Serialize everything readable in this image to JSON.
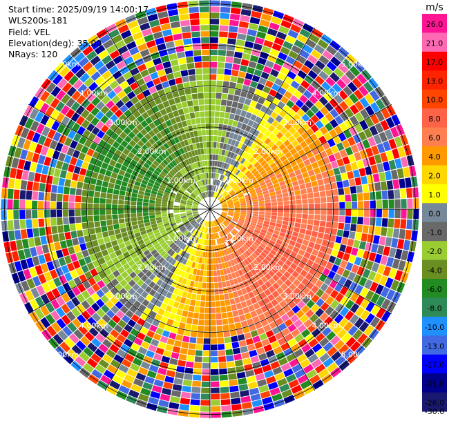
{
  "header": {
    "start_time": "Start time: 2025/09/19 14:00:17",
    "instrument": "WLS200s-181",
    "field": "Field: VEL",
    "elevation": "Elevation(deg): 35.00",
    "nrays": "NRays: 120"
  },
  "chart_data": {
    "type": "heatmap",
    "projection": "polar-ppi",
    "field": "VEL",
    "n_rays": 120,
    "range_rings": [
      {
        "label": "1.00km",
        "value": 1.0
      },
      {
        "label": "2.00km",
        "value": 2.0
      },
      {
        "label": "3.00km",
        "value": 3.0
      },
      {
        "label": "4.00km",
        "value": 4.0
      },
      {
        "label": "5.00km",
        "value": 5.0
      }
    ],
    "max_range_km": 5.1,
    "colorbar": {
      "unit": "m/s",
      "ticks": [
        "26.0",
        "21.0",
        "17.0",
        "13.0",
        "10.0",
        "8.0",
        "6.0",
        "4.0",
        "2.0",
        "1.0",
        "0.0",
        "-1.0",
        "-2.0",
        "-4.0",
        "-6.0",
        "-8.0",
        "-10.0",
        "-13.0",
        "-17.0",
        "-21.0",
        "-26.0",
        "-30.0"
      ],
      "colors": [
        "#ff1493",
        "#ff69b4",
        "#ff0000",
        "#ff2400",
        "#ff4500",
        "#ff6347",
        "#ff7f50",
        "#ff9900",
        "#ffd700",
        "#ffff00",
        "#778899",
        "#696969",
        "#9acd32",
        "#6b8e23",
        "#228b22",
        "#2e8b57",
        "#1e90ff",
        "#4169e1",
        "#0000ff",
        "#00008b",
        "#191970"
      ]
    }
  }
}
